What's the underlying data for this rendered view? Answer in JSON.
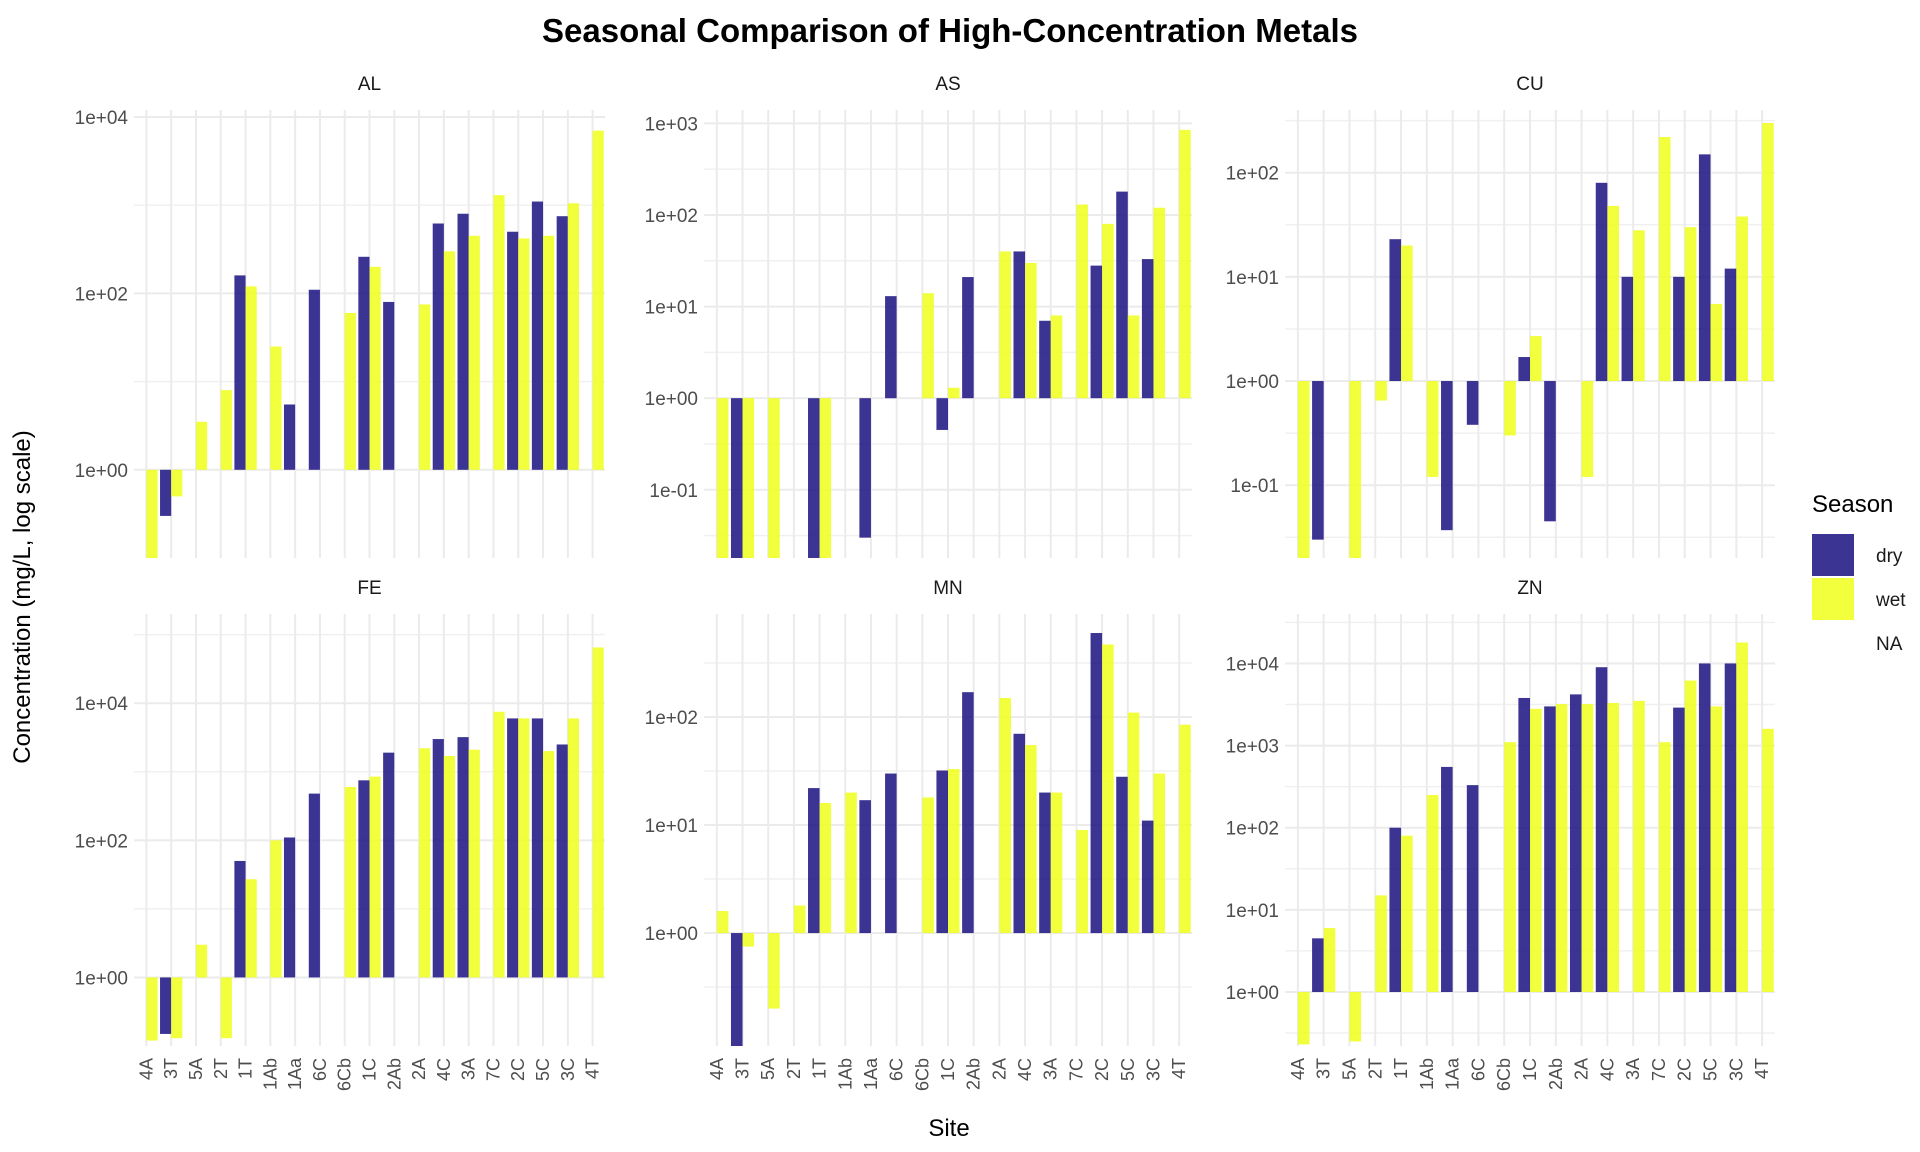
{
  "chart_data": {
    "type": "bar",
    "title": "Seasonal Comparison of High-Concentration Metals",
    "xlabel": "Site",
    "ylabel": "Concentration (mg/L, log scale)",
    "scale": "log10",
    "baseline": 1,
    "legend": {
      "title": "Season",
      "position": "right",
      "entries": [
        {
          "label": "dry",
          "color": "#1a1080"
        },
        {
          "label": "wet",
          "color": "#eeff1a"
        },
        {
          "label": "NA",
          "color": "none"
        }
      ]
    },
    "grid": true,
    "categories": [
      "4A",
      "3T",
      "5A",
      "2T",
      "1T",
      "1Ab",
      "1Aa",
      "6C",
      "6Cb",
      "1C",
      "2Ab",
      "2A",
      "4C",
      "3A",
      "7C",
      "2C",
      "5C",
      "3C",
      "4T"
    ],
    "panels": [
      {
        "name": "AL",
        "yticks": [
          1,
          100,
          10000
        ],
        "ytick_labels": [
          "1e+00",
          "1e+02",
          "1e+04"
        ],
        "ylim": [
          0.1,
          12000
        ],
        "series": [
          {
            "name": "dry",
            "values": [
              null,
              0.3,
              null,
              null,
              160,
              null,
              5.5,
              110,
              null,
              260,
              80,
              null,
              620,
              800,
              null,
              500,
              1100,
              750,
              null
            ]
          },
          {
            "name": "wet",
            "values": [
              0.1,
              0.5,
              3.5,
              8,
              120,
              25,
              null,
              null,
              60,
              200,
              null,
              75,
              300,
              450,
              1300,
              420,
              450,
              1050,
              7000
            ]
          }
        ]
      },
      {
        "name": "AS",
        "yticks": [
          0.1,
          1,
          10,
          100,
          1000
        ],
        "ytick_labels": [
          "1e-01",
          "1e+00",
          "1e+01",
          "1e+02",
          "1e+03"
        ],
        "ylim": [
          0.018,
          1400
        ],
        "series": [
          {
            "name": "dry",
            "values": [
              null,
              0.018,
              null,
              null,
              0.018,
              null,
              0.03,
              13,
              null,
              0.45,
              21,
              null,
              40,
              7,
              null,
              28,
              180,
              33,
              null
            ]
          },
          {
            "name": "wet",
            "values": [
              0.018,
              0.018,
              0.018,
              null,
              0.018,
              1,
              null,
              null,
              14,
              1.3,
              null,
              40,
              30,
              8,
              130,
              80,
              8,
              120,
              850
            ]
          }
        ]
      },
      {
        "name": "CU",
        "yticks": [
          0.1,
          1,
          10,
          100
        ],
        "ytick_labels": [
          "1e-01",
          "1e+00",
          "1e+01",
          "1e+02"
        ],
        "ylim": [
          0.02,
          400
        ],
        "series": [
          {
            "name": "dry",
            "values": [
              null,
              0.03,
              null,
              null,
              23,
              null,
              0.037,
              0.38,
              null,
              1.7,
              0.045,
              null,
              80,
              10,
              null,
              10,
              150,
              12,
              null
            ]
          },
          {
            "name": "wet",
            "values": [
              0.02,
              null,
              0.02,
              0.65,
              20,
              0.12,
              null,
              null,
              0.3,
              2.7,
              null,
              0.12,
              48,
              28,
              220,
              30,
              5.5,
              38,
              300
            ]
          }
        ]
      },
      {
        "name": "FE",
        "yticks": [
          1,
          100,
          10000
        ],
        "ytick_labels": [
          "1e+00",
          "1e+02",
          "1e+04"
        ],
        "ylim": [
          0.1,
          200000
        ],
        "series": [
          {
            "name": "dry",
            "values": [
              null,
              0.15,
              null,
              null,
              50,
              null,
              110,
              480,
              null,
              750,
              1900,
              null,
              3000,
              3200,
              null,
              6000,
              6000,
              2500,
              null
            ]
          },
          {
            "name": "wet",
            "values": [
              0.12,
              0.13,
              3,
              0.13,
              27,
              100,
              null,
              null,
              600,
              850,
              null,
              2200,
              1700,
              2100,
              7500,
              6000,
              2000,
              6000,
              65000
            ]
          }
        ]
      },
      {
        "name": "MN",
        "yticks": [
          1,
          10,
          100
        ],
        "ytick_labels": [
          "1e+00",
          "1e+01",
          "1e+02"
        ],
        "ylim": [
          0.09,
          900
        ],
        "series": [
          {
            "name": "dry",
            "values": [
              null,
              0.09,
              null,
              null,
              22,
              null,
              17,
              30,
              null,
              32,
              170,
              null,
              70,
              20,
              null,
              600,
              28,
              11,
              null
            ]
          },
          {
            "name": "wet",
            "values": [
              1.6,
              0.75,
              0.2,
              1.8,
              16,
              20,
              null,
              null,
              18,
              33,
              null,
              150,
              55,
              20,
              9,
              470,
              110,
              30,
              85
            ]
          }
        ]
      },
      {
        "name": "ZN",
        "yticks": [
          1,
          10,
          100,
          1000,
          10000
        ],
        "ytick_labels": [
          "1e+00",
          "1e+01",
          "1e+02",
          "1e+03",
          "1e+04"
        ],
        "ylim": [
          0.22,
          40000
        ],
        "series": [
          {
            "name": "dry",
            "values": [
              null,
              4.5,
              null,
              null,
              100,
              null,
              550,
              330,
              null,
              3800,
              3000,
              4200,
              9000,
              null,
              null,
              2900,
              10000,
              10000,
              null
            ]
          },
          {
            "name": "wet",
            "values": [
              0.23,
              6,
              0.25,
              15,
              80,
              250,
              null,
              null,
              1100,
              2800,
              3200,
              3200,
              3300,
              3500,
              1100,
              6200,
              3000,
              18000,
              1600
            ]
          }
        ]
      }
    ]
  }
}
